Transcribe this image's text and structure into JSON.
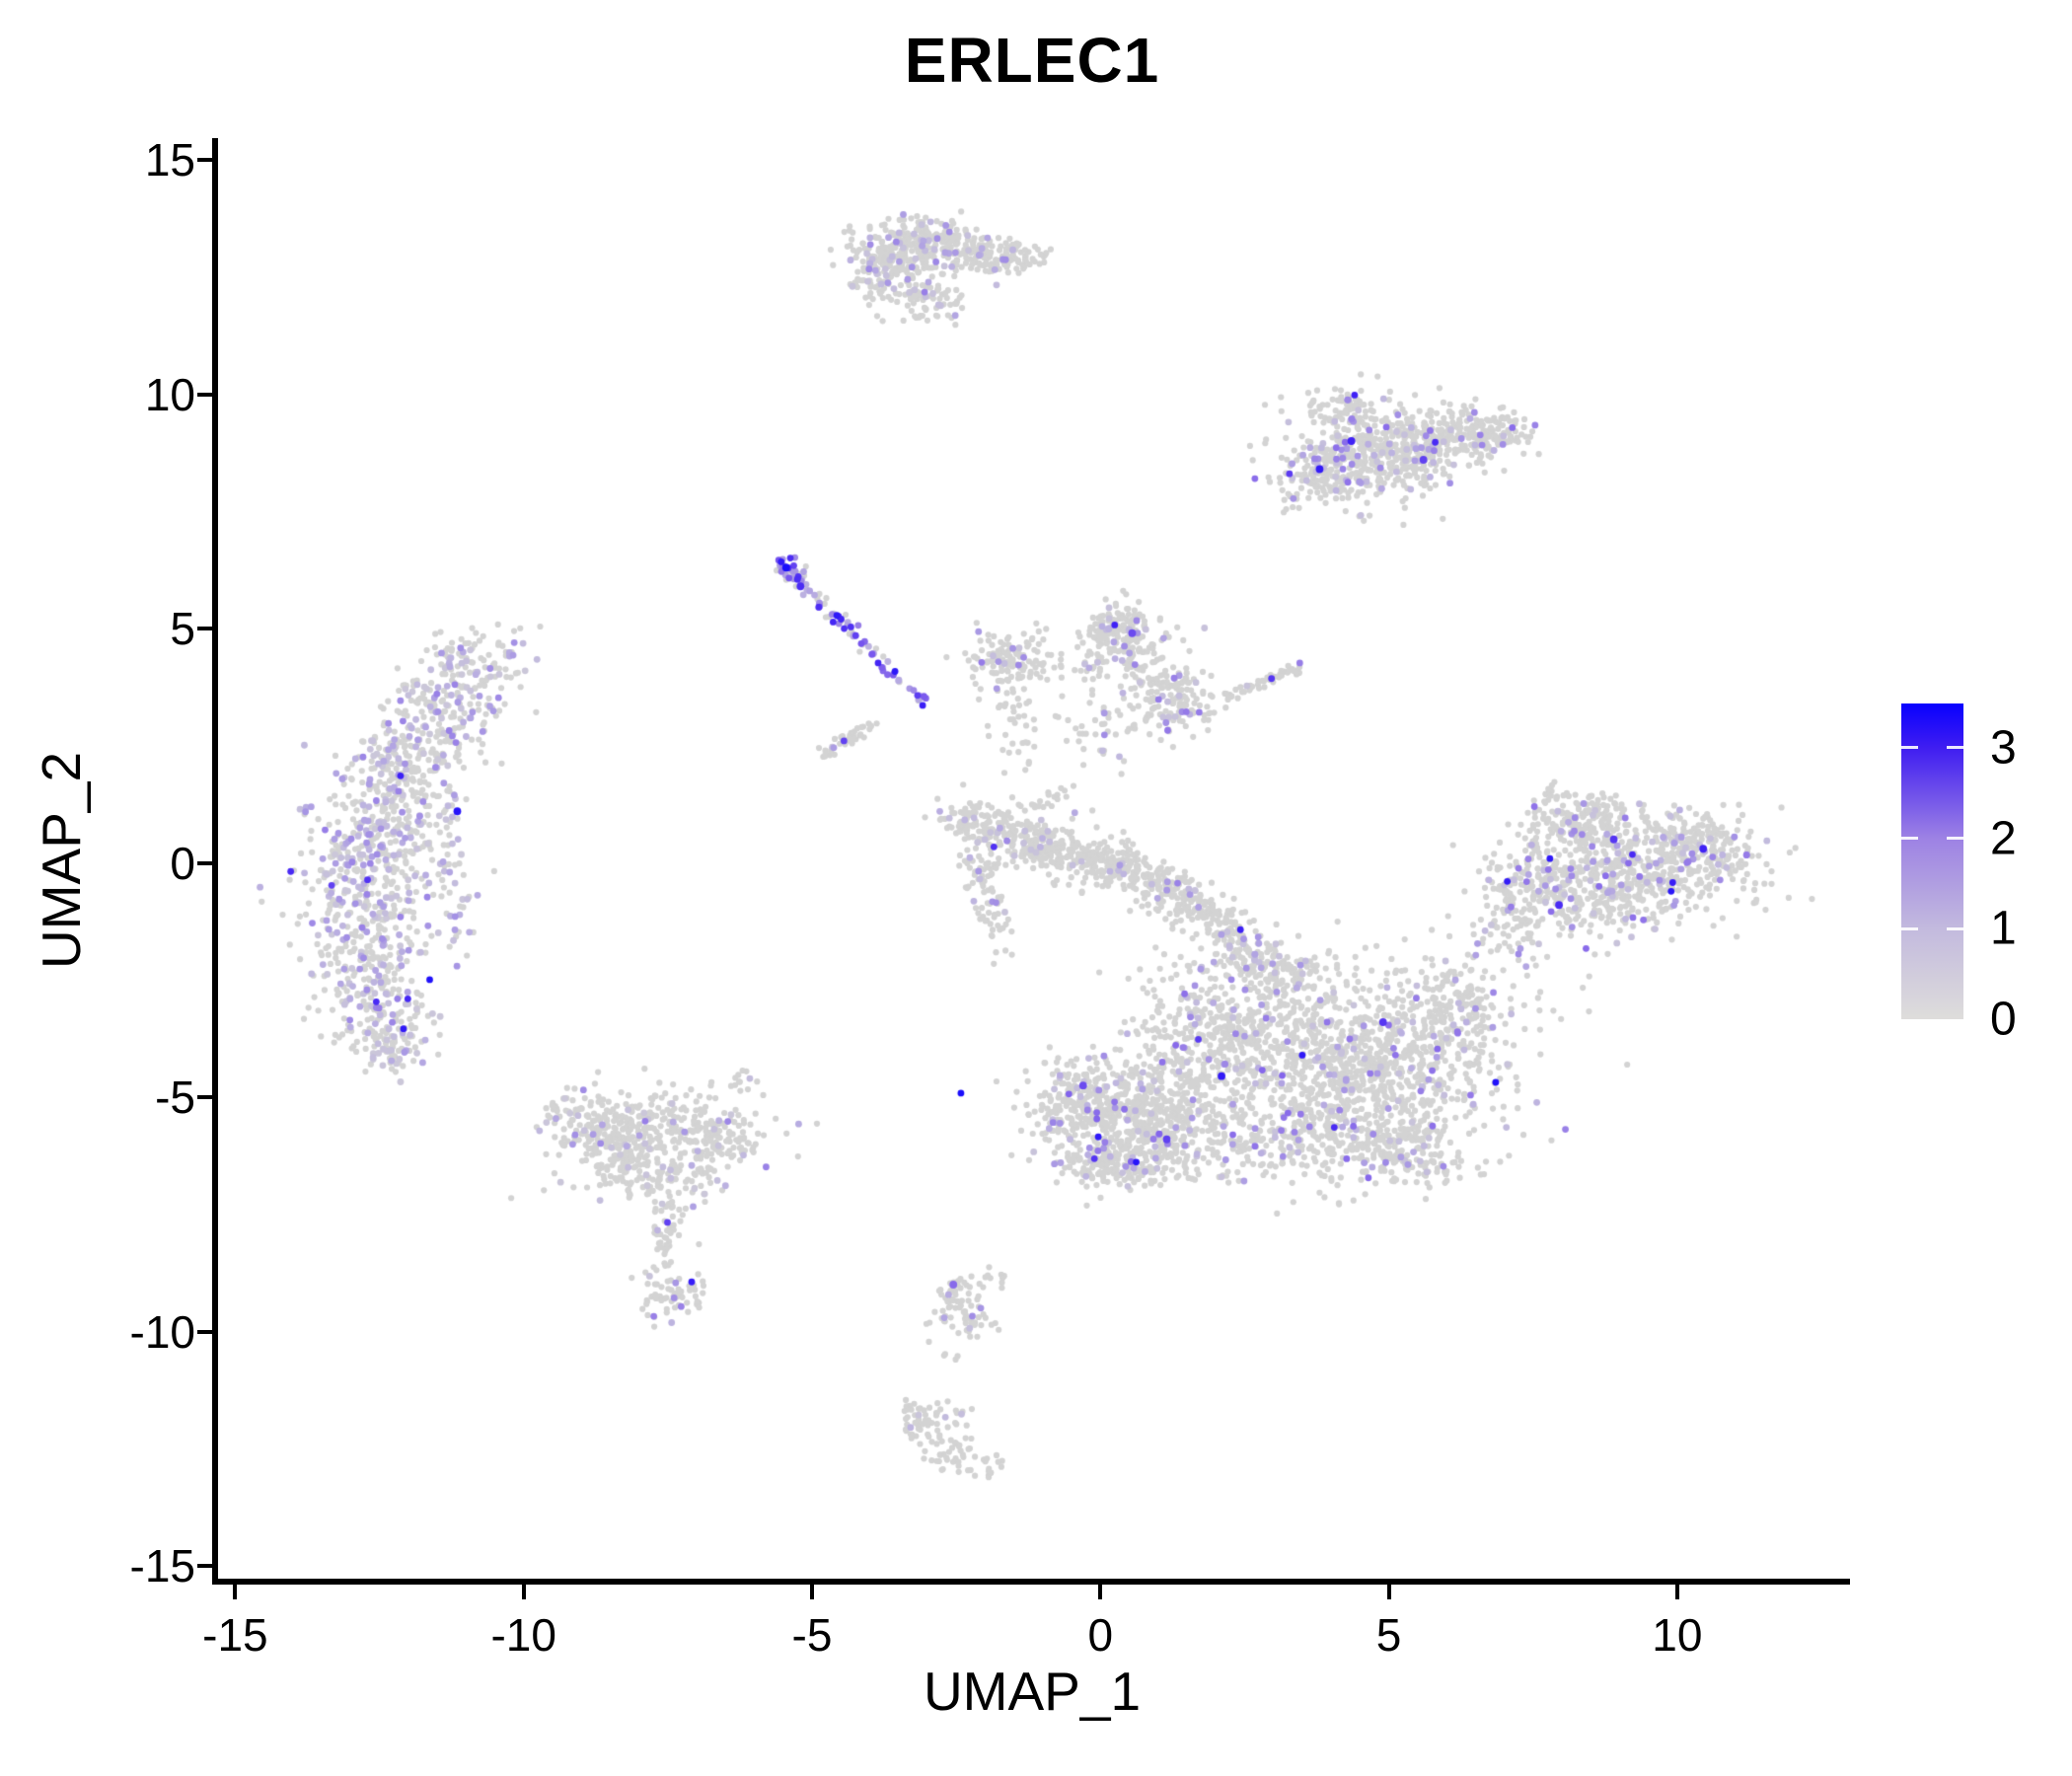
{
  "title": "ERLEC1",
  "axes": {
    "x": {
      "label": "UMAP_1",
      "ticks": [
        {
          "value": -15,
          "label": "-15"
        },
        {
          "value": -10,
          "label": "-10"
        },
        {
          "value": -5,
          "label": "-5"
        },
        {
          "value": 0,
          "label": "0"
        },
        {
          "value": 5,
          "label": "5"
        },
        {
          "value": 10,
          "label": "10"
        }
      ]
    },
    "y": {
      "label": "UMAP_2",
      "ticks": [
        {
          "value": 15,
          "label": "15"
        },
        {
          "value": 10,
          "label": "10"
        },
        {
          "value": 5,
          "label": "5"
        },
        {
          "value": 0,
          "label": "0"
        },
        {
          "value": -5,
          "label": "-5"
        },
        {
          "value": -10,
          "label": "-10"
        },
        {
          "value": -15,
          "label": "-15"
        }
      ]
    }
  },
  "legend": {
    "vmin": 0,
    "vmax": 3.49,
    "labels": [
      {
        "value": 3,
        "label": "3"
      },
      {
        "value": 2,
        "label": "2"
      },
      {
        "value": 1,
        "label": "1"
      },
      {
        "value": 0,
        "label": "0"
      }
    ]
  },
  "chart_data": {
    "type": "scatter",
    "title": "ERLEC1",
    "xlabel": "UMAP_1",
    "ylabel": "UMAP_2",
    "xlim": [
      -15.3,
      12.95
    ],
    "ylim": [
      -15.4,
      15.4
    ],
    "x_ticks": [
      -15,
      -10,
      -5,
      0,
      5,
      10
    ],
    "y_ticks": [
      15,
      10,
      5,
      0,
      -5,
      -10,
      -15
    ],
    "grid": false,
    "legend_position": "right",
    "color_scale": {
      "low": "#D3D3D3",
      "high": "#0000FF",
      "legend_range": [
        0,
        3.49
      ],
      "legend_ticks": [
        0,
        1,
        2,
        3
      ],
      "stops": [
        [
          0.0,
          211,
          211,
          211
        ],
        [
          0.5,
          203,
          199,
          217
        ],
        [
          1.0,
          188,
          178,
          224
        ],
        [
          1.5,
          168,
          151,
          228
        ],
        [
          2.0,
          147,
          120,
          232
        ],
        [
          2.5,
          118,
          85,
          238
        ],
        [
          3.0,
          64,
          34,
          245
        ],
        [
          3.5,
          0,
          0,
          255
        ]
      ]
    },
    "clusters": [
      {
        "name": "top-island",
        "expr": [
          0.1,
          0.6,
          1.9
        ],
        "blobs": [
          [
            260,
            -3.5,
            13.0,
            0.42,
            0.4,
            0
          ],
          [
            90,
            -2.8,
            13.25,
            0.35,
            0.22,
            10
          ],
          [
            110,
            -2.15,
            13.0,
            0.38,
            0.22,
            -5
          ],
          [
            60,
            -1.4,
            12.95,
            0.28,
            0.16,
            5
          ],
          [
            70,
            -3.0,
            12.0,
            0.3,
            0.22,
            -20
          ],
          [
            40,
            -3.9,
            12.3,
            0.2,
            0.3,
            0
          ]
        ]
      },
      {
        "name": "upper-right",
        "expr": [
          0.08,
          0.6,
          2.2
        ],
        "blobs": [
          [
            450,
            4.7,
            8.75,
            0.8,
            0.55,
            12
          ],
          [
            200,
            6.0,
            9.05,
            0.55,
            0.35,
            14
          ],
          [
            70,
            6.9,
            9.2,
            0.33,
            0.2,
            18
          ],
          [
            60,
            4.15,
            9.7,
            0.35,
            0.22,
            0
          ],
          [
            80,
            3.7,
            8.3,
            0.3,
            0.35,
            0
          ]
        ]
      },
      {
        "name": "left-crescent",
        "expr": [
          0.3,
          0.5,
          1.9
        ],
        "blobs": [
          [
            120,
            -10.85,
            4.15,
            0.5,
            0.42,
            20
          ],
          [
            130,
            -11.45,
            3.2,
            0.55,
            0.45,
            10
          ],
          [
            140,
            -12.05,
            2.25,
            0.55,
            0.45,
            10
          ],
          [
            150,
            -12.45,
            1.2,
            0.55,
            0.5,
            0
          ],
          [
            150,
            -12.7,
            0.1,
            0.55,
            0.55,
            0
          ],
          [
            140,
            -12.75,
            -1.0,
            0.55,
            0.55,
            0
          ],
          [
            130,
            -12.7,
            -2.1,
            0.5,
            0.5,
            0
          ],
          [
            120,
            -12.5,
            -3.2,
            0.45,
            0.45,
            0
          ],
          [
            60,
            -12.3,
            -3.95,
            0.3,
            0.25,
            0
          ],
          [
            50,
            -11.6,
            0.4,
            0.35,
            0.7,
            0
          ],
          [
            25,
            -11.2,
            -1.3,
            0.25,
            0.5,
            0
          ]
        ]
      },
      {
        "name": "diagonal-streak",
        "expr": [
          0.78,
          1.0,
          3.2
        ],
        "blobs": [
          [
            18,
            -5.35,
            6.15,
            0.12,
            0.12,
            0
          ]
        ],
        "lines": [
          [
            55,
            -5.55,
            6.4,
            -4.3,
            4.9,
            0.09,
            1.4
          ],
          [
            25,
            -4.3,
            4.9,
            -3.4,
            3.8,
            0.07,
            1
          ],
          [
            10,
            -3.4,
            3.8,
            -2.95,
            3.25,
            0.05,
            1
          ]
        ]
      },
      {
        "name": "gray-diagonal",
        "expr": [
          0.06,
          0.5,
          1.5
        ],
        "lines": [
          [
            40,
            -4.85,
            2.3,
            -3.95,
            2.95,
            0.08,
            1
          ]
        ]
      },
      {
        "name": "center-v",
        "expr": [
          0.08,
          0.6,
          2.0
        ],
        "blobs": [
          [
            140,
            -1.6,
            4.3,
            0.42,
            0.32,
            0
          ],
          [
            190,
            0.45,
            4.55,
            0.42,
            0.45,
            0
          ],
          [
            60,
            0.3,
            5.05,
            0.25,
            0.18,
            0
          ],
          [
            120,
            1.35,
            3.45,
            0.33,
            0.33,
            0
          ],
          [
            50,
            0.2,
            2.9,
            0.55,
            0.4,
            0
          ],
          [
            35,
            -1.5,
            2.9,
            0.25,
            0.45,
            0
          ]
        ],
        "lines": [
          [
            50,
            2.15,
            3.55,
            3.5,
            4.2,
            0.08,
            1
          ]
        ]
      },
      {
        "name": "center-band",
        "expr": [
          0.07,
          0.6,
          1.9
        ],
        "blobs": [
          [
            110,
            -2.05,
            0.8,
            0.4,
            0.25,
            -20
          ],
          [
            120,
            -1.25,
            0.45,
            0.42,
            0.25,
            -20
          ],
          [
            120,
            -0.45,
            0.15,
            0.42,
            0.25,
            -20
          ],
          [
            120,
            0.4,
            -0.15,
            0.42,
            0.25,
            -25
          ],
          [
            110,
            1.2,
            -0.6,
            0.4,
            0.25,
            -30
          ],
          [
            90,
            1.85,
            -1.1,
            0.35,
            0.25,
            -35
          ],
          [
            50,
            -2.1,
            -0.3,
            0.16,
            0.5,
            0
          ],
          [
            30,
            -1.75,
            -1.2,
            0.14,
            0.4,
            0
          ],
          [
            25,
            -1.0,
            1.3,
            0.3,
            0.3,
            0
          ]
        ]
      },
      {
        "name": "bridge-to-bottom",
        "expr": [
          0.12,
          0.6,
          1.9
        ],
        "blobs": [
          [
            40,
            2.7,
            -2.0,
            0.3,
            0.3,
            0
          ]
        ],
        "lines": [
          [
            70,
            2.1,
            -1.3,
            3.3,
            -2.7,
            0.22,
            1
          ]
        ]
      },
      {
        "name": "big-bottom",
        "expr": [
          0.08,
          0.6,
          2.3
        ],
        "blobs": [
          [
            550,
            0.6,
            -5.4,
            0.85,
            0.6,
            -10
          ],
          [
            120,
            -0.45,
            -5.1,
            0.35,
            0.35,
            0
          ],
          [
            180,
            0.3,
            -6.4,
            0.6,
            0.3,
            0
          ],
          [
            420,
            2.0,
            -3.7,
            0.75,
            0.7,
            0
          ],
          [
            220,
            2.9,
            -5.9,
            0.9,
            0.5,
            0
          ],
          [
            1000,
            4.6,
            -4.3,
            1.15,
            0.95,
            0
          ],
          [
            180,
            5.3,
            -6.2,
            0.6,
            0.35,
            0
          ],
          [
            150,
            6.2,
            -3.0,
            0.5,
            0.5,
            0
          ],
          [
            60,
            3.4,
            -2.4,
            0.4,
            0.3,
            0
          ],
          [
            30,
            2.3,
            -2.2,
            0.5,
            0.3,
            0
          ],
          [
            25,
            6.8,
            -1.4,
            0.25,
            0.5,
            0
          ]
        ]
      },
      {
        "name": "right-cluster",
        "expr": [
          0.09,
          0.6,
          2.2
        ],
        "blobs": [
          [
            650,
            9.0,
            -0.25,
            1.1,
            0.62,
            8
          ],
          [
            150,
            8.3,
            0.85,
            0.5,
            0.3,
            10
          ],
          [
            110,
            10.25,
            0.55,
            0.45,
            0.28,
            0
          ],
          [
            90,
            7.4,
            -0.5,
            0.35,
            0.4,
            0
          ],
          [
            40,
            10.9,
            0.1,
            0.25,
            0.35,
            0
          ],
          [
            15,
            7.85,
            1.45,
            0.18,
            0.12,
            0
          ],
          [
            25,
            7.3,
            -1.7,
            0.25,
            0.45,
            0
          ]
        ]
      },
      {
        "name": "lower-left",
        "expr": [
          0.1,
          0.5,
          1.9
        ],
        "blobs": [
          [
            220,
            -8.35,
            -5.85,
            0.6,
            0.48,
            8
          ],
          [
            220,
            -7.0,
            -5.75,
            0.65,
            0.45,
            -8
          ],
          [
            110,
            -7.6,
            -6.75,
            0.55,
            0.3,
            0
          ],
          [
            50,
            -9.0,
            -5.4,
            0.3,
            0.3,
            0
          ],
          [
            45,
            -7.55,
            -7.9,
            0.13,
            0.45,
            0
          ],
          [
            70,
            -7.45,
            -9.25,
            0.3,
            0.35,
            0
          ],
          [
            12,
            -6.1,
            -4.6,
            0.2,
            0.15,
            0
          ]
        ]
      },
      {
        "name": "bottom-small-1",
        "expr": [
          0.07,
          0.6,
          1.8
        ],
        "blobs": [
          [
            65,
            -2.5,
            -9.3,
            0.28,
            0.4,
            -25
          ],
          [
            20,
            -2.1,
            -9.85,
            0.2,
            0.15,
            -20
          ],
          [
            4,
            -2.55,
            -10.55,
            0.1,
            0.08,
            0
          ],
          [
            5,
            -1.75,
            -8.85,
            0.1,
            0.1,
            0
          ]
        ]
      },
      {
        "name": "bottom-small-2",
        "expr": [
          0.05,
          0.5,
          1.5
        ],
        "blobs": [
          [
            60,
            -3.0,
            -11.95,
            0.32,
            0.3,
            0
          ],
          [
            45,
            -2.45,
            -12.65,
            0.35,
            0.2,
            -20
          ],
          [
            8,
            -1.95,
            -12.95,
            0.15,
            0.1,
            0
          ]
        ]
      }
    ],
    "accents": [
      [
        -11.15,
        1.1,
        3.2
      ],
      [
        -5.45,
        6.3,
        3.3
      ],
      [
        -5.2,
        5.9,
        2.9
      ],
      [
        0.55,
        4.9,
        2.6
      ],
      [
        2.1,
        -4.55,
        3.1
      ],
      [
        4.9,
        -3.4,
        2.8
      ],
      [
        10.45,
        0.3,
        3.0
      ],
      [
        7.95,
        -0.9,
        2.9
      ],
      [
        5.6,
        8.6,
        2.7
      ],
      [
        4.35,
        9.0,
        3.0
      ],
      [
        3.8,
        8.4,
        3.1
      ],
      [
        -2.55,
        -9.0,
        2.2
      ],
      [
        8.9,
        0.5,
        2.8
      ],
      [
        1.15,
        -5.9,
        2.7
      ],
      [
        -0.3,
        -4.75,
        2.6
      ]
    ],
    "n_points_approx": 9400
  }
}
